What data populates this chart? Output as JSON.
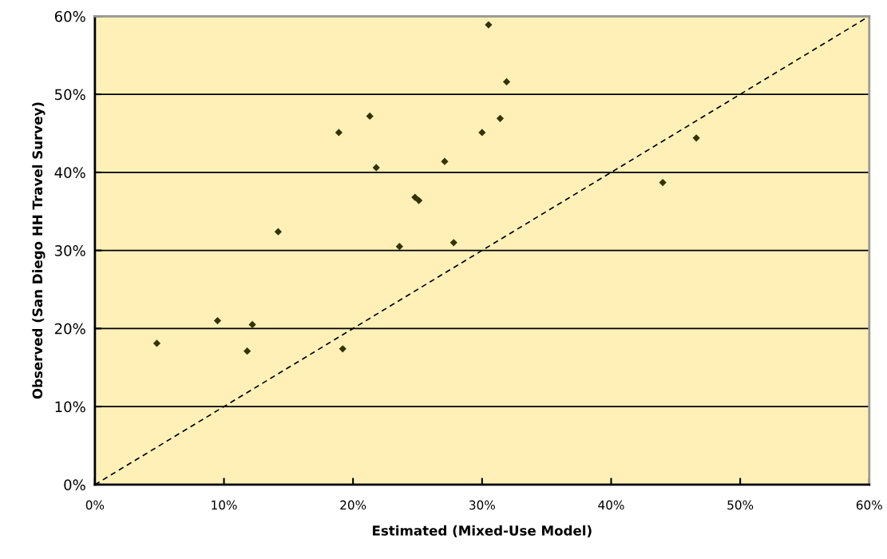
{
  "chart_data": {
    "type": "scatter",
    "xlabel": "Estimated (Mixed-Use Model)",
    "ylabel": "Observed (San Diego HH Travel Survey)",
    "xlim": [
      0,
      60
    ],
    "ylim": [
      0,
      60
    ],
    "xticks": [
      {
        "value": 0,
        "label": "0%"
      },
      {
        "value": 10,
        "label": "10%"
      },
      {
        "value": 20,
        "label": "20%"
      },
      {
        "value": 30,
        "label": "30%"
      },
      {
        "value": 40,
        "label": "40%"
      },
      {
        "value": 50,
        "label": "50%"
      },
      {
        "value": 60,
        "label": "60%"
      }
    ],
    "yticks": [
      {
        "value": 0,
        "label": "0%"
      },
      {
        "value": 10,
        "label": "10%"
      },
      {
        "value": 20,
        "label": "20%"
      },
      {
        "value": 30,
        "label": "30%"
      },
      {
        "value": 40,
        "label": "40%"
      },
      {
        "value": 50,
        "label": "50%"
      },
      {
        "value": 60,
        "label": "60%"
      }
    ],
    "grid": "y",
    "marker": "diamond",
    "series": [
      {
        "color": "#333300",
        "x": [
          4.8,
          9.5,
          11.8,
          12.2,
          19.2,
          14.2,
          18.9,
          21.3,
          21.8,
          24.8,
          25.1,
          23.6,
          27.1,
          27.8,
          30.0,
          30.5,
          31.9,
          31.4,
          44.0,
          46.6
        ],
        "values": [
          18.1,
          21.0,
          17.1,
          20.5,
          17.4,
          32.4,
          45.1,
          47.2,
          40.6,
          36.8,
          36.4,
          30.5,
          41.4,
          31.0,
          45.1,
          58.9,
          51.6,
          46.9,
          38.7,
          44.4
        ]
      },
      {
        "type": "line",
        "color": "#000000",
        "line_style": "dashed",
        "marker": "none",
        "x": [
          0,
          60
        ],
        "values": [
          0,
          60
        ]
      }
    ]
  }
}
